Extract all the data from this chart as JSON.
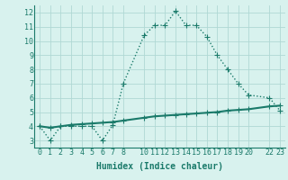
{
  "line1_x": [
    0,
    1,
    2,
    3,
    4,
    5,
    6,
    7,
    8,
    10,
    11,
    12,
    13,
    14,
    15,
    16,
    17,
    18,
    19,
    20,
    22,
    23
  ],
  "line1_y": [
    4.0,
    3.0,
    4.0,
    4.0,
    4.0,
    4.0,
    3.0,
    4.1,
    7.0,
    10.4,
    11.1,
    11.1,
    12.1,
    11.1,
    11.1,
    10.3,
    9.0,
    8.0,
    7.0,
    6.2,
    6.0,
    5.1
  ],
  "line2_x": [
    0,
    1,
    2,
    3,
    4,
    5,
    6,
    7,
    8,
    10,
    11,
    12,
    13,
    14,
    15,
    16,
    17,
    18,
    19,
    20,
    22,
    23
  ],
  "line2_y": [
    4.0,
    3.9,
    4.0,
    4.1,
    4.15,
    4.2,
    4.25,
    4.3,
    4.4,
    4.6,
    4.7,
    4.75,
    4.8,
    4.85,
    4.9,
    4.95,
    5.0,
    5.1,
    5.15,
    5.2,
    5.4,
    5.45
  ],
  "color": "#1a7a6a",
  "bg_color": "#d8f2ee",
  "grid_color": "#b0d8d4",
  "xlabel": "Humidex (Indice chaleur)",
  "xlim": [
    -0.5,
    23.5
  ],
  "ylim": [
    2.5,
    12.5
  ],
  "yticks": [
    3,
    4,
    5,
    6,
    7,
    8,
    9,
    10,
    11,
    12
  ],
  "xticks": [
    0,
    1,
    2,
    3,
    4,
    5,
    6,
    7,
    8,
    10,
    11,
    12,
    13,
    14,
    15,
    16,
    17,
    18,
    19,
    20,
    22,
    23
  ],
  "marker": "+",
  "markersize": 4,
  "linewidth1": 1.0,
  "linewidth2": 1.5,
  "xlabel_fontsize": 7,
  "tick_fontsize": 6
}
